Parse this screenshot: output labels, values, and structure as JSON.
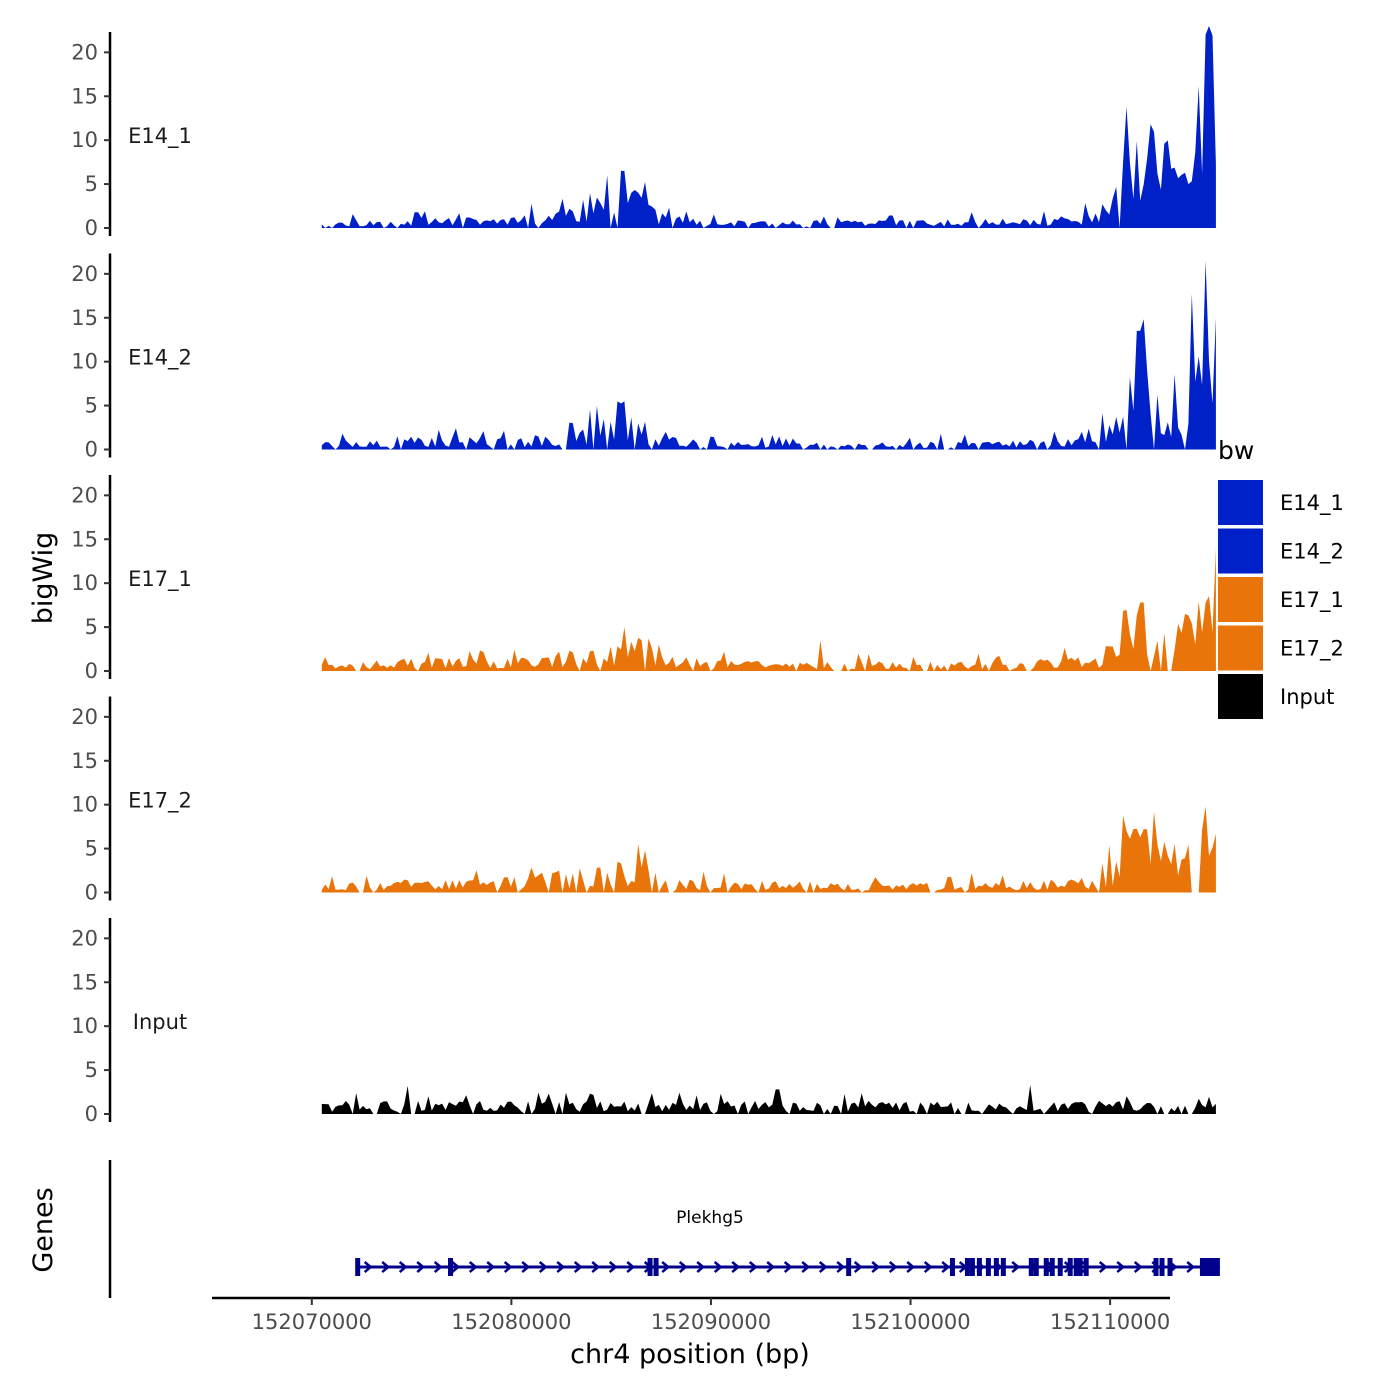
{
  "chart_data": {
    "type": "area",
    "ylabel": "bigWig",
    "xlabel": "chr4 position (bp)",
    "xlim": [
      152065000,
      152113000
    ],
    "ylim": [
      0,
      23
    ],
    "yticks": [
      0,
      5,
      10,
      15,
      20
    ],
    "ytick_labels": [
      "0",
      "5",
      "10",
      "15",
      "20"
    ],
    "xticks": [
      152070000,
      152080000,
      152090000,
      152100000,
      152110000
    ],
    "xtick_labels": [
      "152070000",
      "152080000",
      "152090000",
      "152100000",
      "152110000"
    ],
    "region": [
      152070500,
      152115300
    ],
    "legend": {
      "title": "bw",
      "position": "right",
      "entries": [
        {
          "label": "E14_1",
          "color": "#0020C8"
        },
        {
          "label": "E14_2",
          "color": "#0020C8"
        },
        {
          "label": "E17_1",
          "color": "#E8740A"
        },
        {
          "label": "E17_2",
          "color": "#E8740A"
        },
        {
          "label": "Input",
          "color": "#000000"
        }
      ]
    },
    "series": [
      {
        "name": "E14_1",
        "color": "#0020C8",
        "seed": 11,
        "base": [
          [
            152070500,
            0.7
          ],
          [
            152073500,
            0.7
          ],
          [
            152076000,
            0.8
          ],
          [
            152080000,
            0.9
          ],
          [
            152083000,
            1.6
          ],
          [
            152084500,
            3.5
          ],
          [
            152086500,
            2.8
          ],
          [
            152087500,
            1.2
          ],
          [
            152090000,
            0.6
          ],
          [
            152100000,
            0.6
          ],
          [
            152107000,
            0.8
          ],
          [
            152109500,
            1.4
          ],
          [
            152110400,
            5.0
          ],
          [
            152111100,
            12.0
          ],
          [
            152112000,
            8.5
          ],
          [
            152113000,
            7.0
          ],
          [
            152114000,
            7.0
          ],
          [
            152114400,
            13.0
          ],
          [
            152114900,
            20.5
          ],
          [
            152115300,
            17.5
          ]
        ],
        "peaks": [
          [
            152075200,
            1.8
          ],
          [
            152084800,
            6.0
          ],
          [
            152085600,
            6.5
          ],
          [
            152087900,
            2.3
          ],
          [
            152103100,
            1.8
          ],
          [
            152109800,
            2.0
          ],
          [
            152114800,
            22.0
          ]
        ]
      },
      {
        "name": "E14_2",
        "color": "#0020C8",
        "seed": 23,
        "base": [
          [
            152070500,
            0.7
          ],
          [
            152074000,
            1.0
          ],
          [
            152077000,
            1.0
          ],
          [
            152080000,
            0.9
          ],
          [
            152083000,
            1.4
          ],
          [
            152084500,
            2.4
          ],
          [
            152086500,
            2.8
          ],
          [
            152087500,
            1.2
          ],
          [
            152090000,
            0.6
          ],
          [
            152100000,
            0.6
          ],
          [
            152107000,
            0.8
          ],
          [
            152110000,
            2.2
          ],
          [
            152110800,
            4.5
          ],
          [
            152111300,
            13.0
          ],
          [
            152112100,
            7.5
          ],
          [
            152113000,
            5.5
          ],
          [
            152114000,
            7.0
          ],
          [
            152114400,
            14.0
          ],
          [
            152114900,
            21.0
          ],
          [
            152115300,
            20.0
          ]
        ],
        "peaks": [
          [
            152085700,
            5.5
          ],
          [
            152087700,
            2.0
          ],
          [
            152101500,
            1.8
          ],
          [
            152108600,
            2.0
          ],
          [
            152111400,
            13.5
          ],
          [
            152114800,
            21.5
          ]
        ]
      },
      {
        "name": "E17_1",
        "color": "#E8740A",
        "seed": 37,
        "base": [
          [
            152070500,
            0.7
          ],
          [
            152075000,
            1.0
          ],
          [
            152080000,
            1.1
          ],
          [
            152083000,
            1.6
          ],
          [
            152086500,
            2.6
          ],
          [
            152087500,
            1.2
          ],
          [
            152090000,
            0.9
          ],
          [
            152095000,
            0.8
          ],
          [
            152100000,
            0.8
          ],
          [
            152105000,
            0.7
          ],
          [
            152109500,
            1.3
          ],
          [
            152110400,
            4.0
          ],
          [
            152111200,
            6.0
          ],
          [
            152112400,
            4.0
          ],
          [
            152113500,
            4.0
          ],
          [
            152114400,
            7.0
          ],
          [
            152114900,
            11.0
          ],
          [
            152115300,
            13.0
          ]
        ],
        "peaks": [
          [
            152086900,
            3.7
          ],
          [
            152095500,
            3.5
          ],
          [
            152111600,
            7.8
          ],
          [
            152115300,
            14.0
          ]
        ]
      },
      {
        "name": "E17_2",
        "color": "#E8740A",
        "seed": 53,
        "base": [
          [
            152070500,
            0.8
          ],
          [
            152075000,
            1.0
          ],
          [
            152080000,
            1.2
          ],
          [
            152083000,
            1.8
          ],
          [
            152086500,
            2.6
          ],
          [
            152087500,
            1.2
          ],
          [
            152090000,
            0.9
          ],
          [
            152100000,
            0.8
          ],
          [
            152105000,
            0.9
          ],
          [
            152109500,
            1.2
          ],
          [
            152110400,
            3.8
          ],
          [
            152111300,
            5.5
          ],
          [
            152112400,
            4.2
          ],
          [
            152113500,
            4.0
          ],
          [
            152114400,
            6.5
          ],
          [
            152114900,
            9.5
          ],
          [
            152115300,
            6.0
          ]
        ],
        "peaks": [
          [
            152110800,
            7.0
          ],
          [
            152111800,
            7.2
          ],
          [
            152114800,
            9.8
          ]
        ]
      },
      {
        "name": "Input",
        "color": "#000000",
        "seed": 71,
        "base": [
          [
            152070500,
            1.0
          ],
          [
            152080000,
            1.0
          ],
          [
            152090000,
            1.0
          ],
          [
            152100000,
            1.0
          ],
          [
            152110000,
            1.0
          ],
          [
            152115300,
            0.8
          ]
        ],
        "peaks": [
          [
            152074800,
            3.2
          ],
          [
            152093300,
            2.8
          ],
          [
            152106000,
            3.3
          ]
        ]
      }
    ],
    "genes_track": {
      "label": "Genes",
      "gene_name": "Plekhg5",
      "color": "#00008B",
      "start": 152072300,
      "end": 152115500,
      "strand": "+",
      "exons": [
        152072300,
        152076950,
        152086950,
        152087250,
        152096900,
        152102100,
        152102850,
        152103100,
        152103450,
        152103900,
        152104300,
        152104650,
        152106050,
        152106300,
        152106800,
        152107100,
        152107500,
        152108000,
        152108300,
        152108500,
        152108800,
        152112300,
        152112600,
        152113000
      ]
    }
  }
}
